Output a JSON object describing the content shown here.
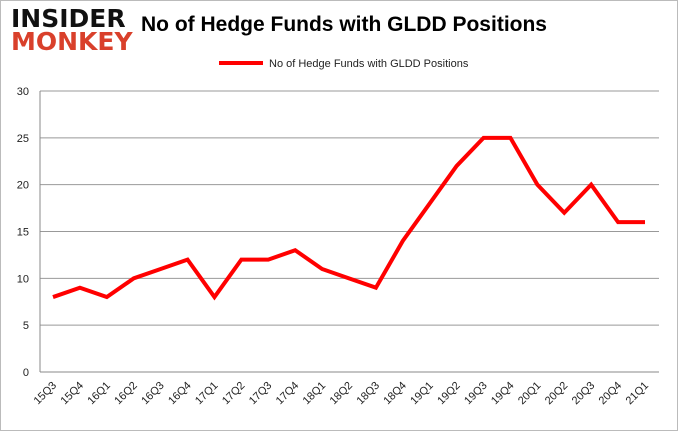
{
  "logo": {
    "line1": "INSIDER",
    "line2": "MONKEY"
  },
  "chart_data": {
    "type": "line",
    "title": "No of Hedge Funds with GLDD Positions",
    "xlabel": "",
    "ylabel": "",
    "categories": [
      "15Q3",
      "15Q4",
      "16Q1",
      "16Q2",
      "16Q3",
      "16Q4",
      "17Q1",
      "17Q2",
      "17Q3",
      "17Q4",
      "18Q1",
      "18Q2",
      "18Q3",
      "18Q4",
      "19Q1",
      "19Q2",
      "19Q3",
      "19Q4",
      "20Q1",
      "20Q2",
      "20Q3",
      "20Q4",
      "21Q1"
    ],
    "series": [
      {
        "name": "No of Hedge Funds with GLDD Positions",
        "color": "#ff0000",
        "values": [
          8,
          9,
          8,
          10,
          11,
          12,
          8,
          12,
          12,
          13,
          11,
          10,
          9,
          14,
          18,
          22,
          25,
          25,
          20,
          17,
          20,
          16,
          16
        ]
      }
    ],
    "ylim": [
      0,
      30
    ],
    "yticks": [
      0,
      5,
      10,
      15,
      20,
      25,
      30
    ],
    "grid": true,
    "legend_position": "top-center"
  }
}
